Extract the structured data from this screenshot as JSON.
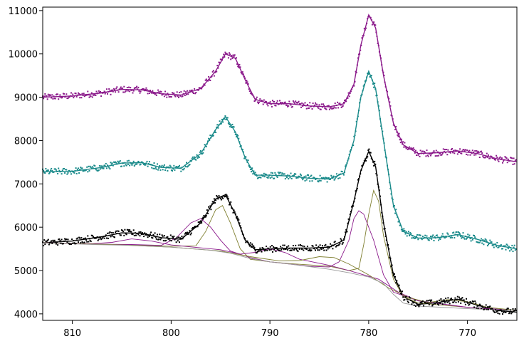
{
  "chart_data": {
    "type": "scatter",
    "title": "",
    "xlabel": "",
    "ylabel": "",
    "x_reversed": true,
    "xlim": [
      813,
      765
    ],
    "ylim": [
      3850,
      11080
    ],
    "grid": false,
    "legend": "none",
    "x_ticks": [
      {
        "value": 810,
        "label": "810"
      },
      {
        "value": 800,
        "label": "800"
      },
      {
        "value": 790,
        "label": "790"
      },
      {
        "value": 780,
        "label": "780"
      },
      {
        "value": 770,
        "label": "770"
      }
    ],
    "y_ticks": [
      {
        "value": 4000,
        "label": "4000"
      },
      {
        "value": 5000,
        "label": "5000"
      },
      {
        "value": 6000,
        "label": "6000"
      },
      {
        "value": 7000,
        "label": "7000"
      },
      {
        "value": 8000,
        "label": "8000"
      },
      {
        "value": 9000,
        "label": "9000"
      },
      {
        "value": 10000,
        "label": "10000"
      },
      {
        "value": 11000,
        "label": "11000"
      }
    ],
    "series": [
      {
        "color": "#8b1a8b",
        "points": [
          [
            813,
            9000
          ],
          [
            810,
            9030
          ],
          [
            807,
            9100
          ],
          [
            805,
            9180
          ],
          [
            803,
            9170
          ],
          [
            801,
            9080
          ],
          [
            799,
            9050
          ],
          [
            797,
            9200
          ],
          [
            795.5,
            9600
          ],
          [
            794.5,
            10000
          ],
          [
            793.5,
            9900
          ],
          [
            792.5,
            9400
          ],
          [
            791.5,
            8950
          ],
          [
            790,
            8850
          ],
          [
            788,
            8850
          ],
          [
            786,
            8800
          ],
          [
            784,
            8780
          ],
          [
            782.5,
            8850
          ],
          [
            781.5,
            9300
          ],
          [
            780.8,
            10200
          ],
          [
            780,
            10900
          ],
          [
            779.3,
            10600
          ],
          [
            778.5,
            9500
          ],
          [
            777.5,
            8400
          ],
          [
            776.5,
            7900
          ],
          [
            775,
            7700
          ],
          [
            773,
            7720
          ],
          [
            771,
            7760
          ],
          [
            769,
            7700
          ],
          [
            767,
            7580
          ],
          [
            765,
            7510
          ]
        ]
      },
      {
        "color": "#1a8a8a",
        "points": [
          [
            813,
            7280
          ],
          [
            810,
            7290
          ],
          [
            807,
            7380
          ],
          [
            805,
            7480
          ],
          [
            803,
            7490
          ],
          [
            801,
            7380
          ],
          [
            799,
            7360
          ],
          [
            797,
            7700
          ],
          [
            795.5,
            8250
          ],
          [
            794.5,
            8550
          ],
          [
            793.5,
            8200
          ],
          [
            792.5,
            7600
          ],
          [
            791.5,
            7200
          ],
          [
            790,
            7200
          ],
          [
            788,
            7180
          ],
          [
            786,
            7130
          ],
          [
            784,
            7110
          ],
          [
            782.5,
            7250
          ],
          [
            781.5,
            8000
          ],
          [
            780.8,
            9000
          ],
          [
            780,
            9600
          ],
          [
            779.3,
            9200
          ],
          [
            778.5,
            8000
          ],
          [
            777.5,
            6500
          ],
          [
            776.5,
            5900
          ],
          [
            775,
            5750
          ],
          [
            773,
            5760
          ],
          [
            771,
            5830
          ],
          [
            769,
            5720
          ],
          [
            767,
            5580
          ],
          [
            765,
            5500
          ]
        ]
      },
      {
        "color": "#000000",
        "points": [
          [
            813,
            5640
          ],
          [
            810,
            5680
          ],
          [
            807,
            5780
          ],
          [
            805,
            5870
          ],
          [
            803,
            5860
          ],
          [
            801,
            5760
          ],
          [
            799,
            5720
          ],
          [
            797,
            6100
          ],
          [
            795.5,
            6650
          ],
          [
            794.5,
            6750
          ],
          [
            793.5,
            6300
          ],
          [
            792.5,
            5700
          ],
          [
            791.5,
            5480
          ],
          [
            790,
            5500
          ],
          [
            788,
            5520
          ],
          [
            786,
            5520
          ],
          [
            784,
            5540
          ],
          [
            782.5,
            5700
          ],
          [
            781.5,
            6600
          ],
          [
            780.8,
            7300
          ],
          [
            780,
            7750
          ],
          [
            779.3,
            7400
          ],
          [
            778.5,
            6100
          ],
          [
            777.5,
            4900
          ],
          [
            776.5,
            4400
          ],
          [
            775,
            4220
          ],
          [
            773,
            4260
          ],
          [
            771,
            4340
          ],
          [
            769,
            4200
          ],
          [
            767,
            4080
          ],
          [
            765,
            4040
          ]
        ]
      }
    ],
    "fit_lines": [
      {
        "color": "#8b1a8b",
        "points": [
          [
            813,
            9000
          ],
          [
            810,
            9030
          ],
          [
            807,
            9100
          ],
          [
            805,
            9180
          ],
          [
            803,
            9170
          ],
          [
            801,
            9080
          ],
          [
            799,
            9050
          ],
          [
            797,
            9200
          ],
          [
            795.5,
            9600
          ],
          [
            794.5,
            10000
          ],
          [
            793.5,
            9900
          ],
          [
            792.5,
            9400
          ],
          [
            791.5,
            8950
          ],
          [
            790,
            8850
          ],
          [
            788,
            8850
          ],
          [
            786,
            8800
          ],
          [
            784,
            8780
          ],
          [
            782.5,
            8850
          ],
          [
            781.5,
            9300
          ],
          [
            780.8,
            10200
          ],
          [
            780,
            10900
          ],
          [
            779.3,
            10600
          ],
          [
            778.5,
            9500
          ],
          [
            777.5,
            8400
          ],
          [
            776.5,
            7900
          ],
          [
            775,
            7700
          ],
          [
            773,
            7720
          ],
          [
            771,
            7760
          ],
          [
            769,
            7700
          ],
          [
            767,
            7580
          ],
          [
            765,
            7510
          ]
        ]
      },
      {
        "color": "#1a8a8a",
        "points": [
          [
            813,
            7280
          ],
          [
            810,
            7290
          ],
          [
            807,
            7380
          ],
          [
            805,
            7480
          ],
          [
            803,
            7490
          ],
          [
            801,
            7380
          ],
          [
            799,
            7360
          ],
          [
            797,
            7700
          ],
          [
            795.5,
            8250
          ],
          [
            794.5,
            8550
          ],
          [
            793.5,
            8200
          ],
          [
            792.5,
            7600
          ],
          [
            791.5,
            7200
          ],
          [
            790,
            7200
          ],
          [
            788,
            7180
          ],
          [
            786,
            7130
          ],
          [
            784,
            7110
          ],
          [
            782.5,
            7250
          ],
          [
            781.5,
            8000
          ],
          [
            780.8,
            9000
          ],
          [
            780,
            9600
          ],
          [
            779.3,
            9200
          ],
          [
            778.5,
            8000
          ],
          [
            777.5,
            6500
          ],
          [
            776.5,
            5900
          ],
          [
            775,
            5750
          ],
          [
            773,
            5760
          ],
          [
            771,
            5830
          ],
          [
            769,
            5720
          ],
          [
            767,
            5580
          ],
          [
            765,
            5500
          ]
        ]
      },
      {
        "color": "#000000",
        "points": [
          [
            813,
            5640
          ],
          [
            810,
            5680
          ],
          [
            807,
            5780
          ],
          [
            805,
            5870
          ],
          [
            803,
            5860
          ],
          [
            801,
            5760
          ],
          [
            799,
            5720
          ],
          [
            797,
            6100
          ],
          [
            795.5,
            6650
          ],
          [
            794.5,
            6750
          ],
          [
            793.5,
            6300
          ],
          [
            792.5,
            5700
          ],
          [
            791.5,
            5480
          ],
          [
            790,
            5500
          ],
          [
            788,
            5520
          ],
          [
            786,
            5520
          ],
          [
            784,
            5540
          ],
          [
            782.5,
            5700
          ],
          [
            781.5,
            6600
          ],
          [
            780.8,
            7300
          ],
          [
            780,
            7750
          ],
          [
            779.3,
            7400
          ],
          [
            778.5,
            6100
          ],
          [
            777.5,
            4900
          ],
          [
            776.5,
            4400
          ],
          [
            775,
            4220
          ],
          [
            773,
            4260
          ],
          [
            771,
            4340
          ],
          [
            769,
            4200
          ],
          [
            767,
            4080
          ],
          [
            765,
            4040
          ]
        ]
      },
      {
        "color": "#7f7f30",
        "points": [
          [
            813,
            5640
          ],
          [
            808,
            5610
          ],
          [
            804,
            5590
          ],
          [
            800,
            5560
          ],
          [
            797.5,
            5570
          ],
          [
            796.5,
            5900
          ],
          [
            795.5,
            6400
          ],
          [
            794.8,
            6500
          ],
          [
            794,
            6100
          ],
          [
            793,
            5500
          ],
          [
            792,
            5260
          ],
          [
            790,
            5200
          ],
          [
            788,
            5160
          ],
          [
            786,
            5130
          ],
          [
            784,
            5100
          ],
          [
            782,
            5000
          ],
          [
            781,
            5050
          ],
          [
            780.5,
            5600
          ],
          [
            780,
            6300
          ],
          [
            779.5,
            6850
          ],
          [
            779,
            6600
          ],
          [
            778.5,
            5800
          ],
          [
            777.5,
            4800
          ],
          [
            776.5,
            4400
          ],
          [
            775,
            4250
          ],
          [
            770,
            4150
          ],
          [
            765,
            4080
          ]
        ]
      },
      {
        "color": "#8b1a8b",
        "points": [
          [
            813,
            5640
          ],
          [
            808,
            5610
          ],
          [
            804,
            5600
          ],
          [
            801,
            5580
          ],
          [
            799.5,
            5750
          ],
          [
            798,
            6100
          ],
          [
            797,
            6200
          ],
          [
            796,
            6000
          ],
          [
            795,
            5700
          ],
          [
            794,
            5450
          ],
          [
            792,
            5300
          ],
          [
            790,
            5200
          ],
          [
            788,
            5150
          ],
          [
            786,
            5100
          ],
          [
            784,
            5080
          ],
          [
            783,
            5200
          ],
          [
            782,
            5700
          ],
          [
            781.5,
            6200
          ],
          [
            781,
            6380
          ],
          [
            780.5,
            6300
          ],
          [
            779.5,
            5700
          ],
          [
            778.5,
            4900
          ],
          [
            777.5,
            4500
          ],
          [
            775,
            4300
          ],
          [
            770,
            4150
          ],
          [
            765,
            4080
          ]
        ]
      },
      {
        "color": "#8b1a8b",
        "points": [
          [
            813,
            5640
          ],
          [
            808,
            5620
          ],
          [
            806,
            5650
          ],
          [
            804,
            5730
          ],
          [
            802,
            5680
          ],
          [
            800,
            5590
          ],
          [
            795,
            5480
          ],
          [
            793,
            5380
          ],
          [
            791.5,
            5420
          ],
          [
            790,
            5500
          ],
          [
            788.5,
            5420
          ],
          [
            787,
            5260
          ],
          [
            784,
            5120
          ],
          [
            782,
            5000
          ],
          [
            779,
            4800
          ],
          [
            777,
            4500
          ],
          [
            775,
            4300
          ],
          [
            770,
            4150
          ],
          [
            765,
            4080
          ]
        ]
      },
      {
        "color": "#7f7f30",
        "points": [
          [
            813,
            5640
          ],
          [
            806,
            5600
          ],
          [
            800,
            5540
          ],
          [
            795,
            5450
          ],
          [
            792,
            5320
          ],
          [
            789,
            5220
          ],
          [
            787,
            5230
          ],
          [
            785,
            5320
          ],
          [
            783.5,
            5300
          ],
          [
            782,
            5150
          ],
          [
            780,
            4900
          ],
          [
            778,
            4600
          ],
          [
            776,
            4380
          ],
          [
            774,
            4260
          ],
          [
            772,
            4330
          ],
          [
            770,
            4280
          ],
          [
            768,
            4150
          ],
          [
            765,
            4080
          ]
        ]
      },
      {
        "color": "#999999",
        "points": [
          [
            813,
            5640
          ],
          [
            808,
            5600
          ],
          [
            804,
            5580
          ],
          [
            800,
            5540
          ],
          [
            796,
            5470
          ],
          [
            794,
            5400
          ],
          [
            792,
            5280
          ],
          [
            790,
            5200
          ],
          [
            788,
            5150
          ],
          [
            786,
            5090
          ],
          [
            784,
            5030
          ],
          [
            782,
            4950
          ],
          [
            780,
            4850
          ],
          [
            778.5,
            4700
          ],
          [
            777.5,
            4450
          ],
          [
            776.5,
            4250
          ],
          [
            775,
            4180
          ],
          [
            770,
            4120
          ],
          [
            765,
            4080
          ]
        ]
      }
    ]
  }
}
